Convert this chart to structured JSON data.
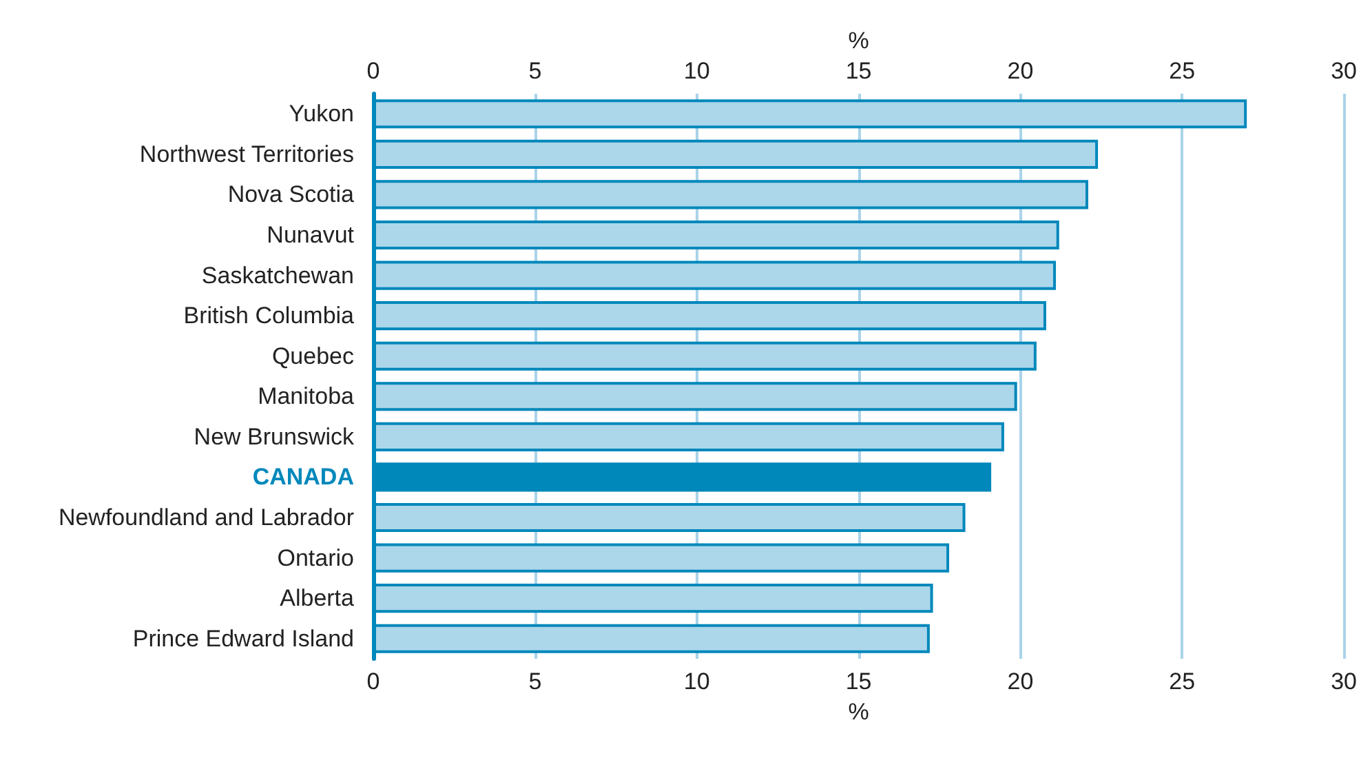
{
  "chart_data": {
    "type": "bar",
    "orientation": "horizontal",
    "xlabel": "%",
    "x2label": "%",
    "categories": [
      "Yukon",
      "Northwest Territories",
      "Nova Scotia",
      "Nunavut",
      "Saskatchewan",
      "British Columbia",
      "Quebec",
      "Manitoba",
      "New Brunswick",
      "CANADA",
      "Newfoundland and Labrador",
      "Ontario",
      "Alberta",
      "Prince Edward Island"
    ],
    "values": [
      27.0,
      22.4,
      22.1,
      21.2,
      21.1,
      20.8,
      20.5,
      19.9,
      19.5,
      19.1,
      18.3,
      17.8,
      17.3,
      17.2
    ],
    "color": "#acd6ea",
    "colors": [
      "#acd6ea",
      "#acd6ea",
      "#acd6ea",
      "#acd6ea",
      "#acd6ea",
      "#acd6ea",
      "#acd6ea",
      "#acd6ea",
      "#acd6ea",
      "#0088bb",
      "#acd6ea",
      "#acd6ea",
      "#acd6ea",
      "#acd6ea"
    ],
    "xlim": [
      0,
      30
    ],
    "xticks": [
      0,
      5,
      10,
      15,
      20,
      25,
      30
    ],
    "x2lim": [
      0,
      30
    ],
    "x2ticks": [
      0,
      5,
      10,
      15,
      20,
      25,
      30
    ],
    "grid": "x"
  }
}
